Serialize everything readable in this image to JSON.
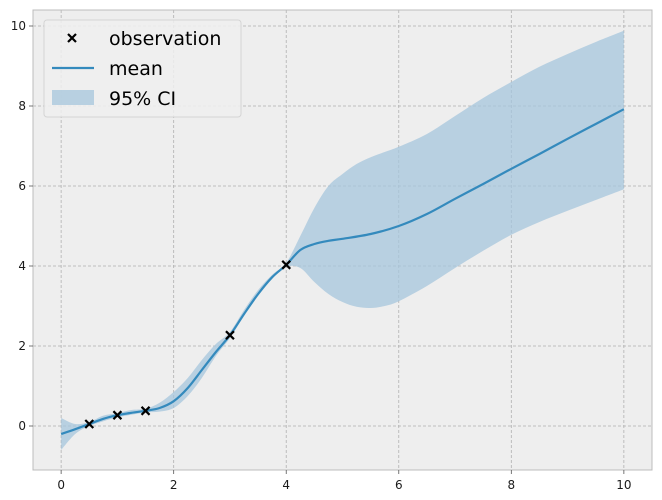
{
  "chart_data": {
    "type": "line",
    "title": "",
    "xlabel": "",
    "ylabel": "",
    "xlim": [
      -0.5,
      10.5
    ],
    "ylim": [
      -1.1,
      10.4
    ],
    "xticks": [
      0,
      2,
      4,
      6,
      8,
      10
    ],
    "yticks": [
      0,
      2,
      4,
      6,
      8,
      10
    ],
    "grid": true,
    "legend_position": "top-left",
    "colors": {
      "mean": "#348abd",
      "ci": "#a6c5dc",
      "observation": "#000000",
      "axes_bg": "#eeeeee",
      "grid": "#b0b0b0",
      "spine": "#bcbcbc"
    },
    "series": [
      {
        "name": "observation",
        "kind": "scatter",
        "x": [
          0.5,
          1.0,
          1.5,
          3.0,
          4.0
        ],
        "y": [
          0.05,
          0.27,
          0.38,
          2.27,
          4.03
        ]
      },
      {
        "name": "mean",
        "kind": "line",
        "x": [
          0,
          0.25,
          0.5,
          0.75,
          1.0,
          1.25,
          1.5,
          1.75,
          2.0,
          2.25,
          2.5,
          2.75,
          3.0,
          3.25,
          3.5,
          3.75,
          4.0,
          4.25,
          4.5,
          4.75,
          5.0,
          5.5,
          6.0,
          6.5,
          7.0,
          7.5,
          8.0,
          8.5,
          9.0,
          9.5,
          10.0
        ],
        "y": [
          -0.2,
          -0.08,
          0.05,
          0.18,
          0.27,
          0.33,
          0.38,
          0.45,
          0.62,
          0.95,
          1.4,
          1.85,
          2.27,
          2.8,
          3.3,
          3.72,
          4.03,
          4.4,
          4.55,
          4.63,
          4.68,
          4.8,
          5.0,
          5.3,
          5.68,
          6.05,
          6.43,
          6.8,
          7.18,
          7.55,
          7.92
        ]
      },
      {
        "name": "95% CI",
        "kind": "band",
        "x": [
          0,
          0.25,
          0.5,
          0.75,
          1.0,
          1.25,
          1.5,
          1.75,
          2.0,
          2.25,
          2.5,
          2.75,
          3.0,
          3.25,
          3.5,
          3.75,
          4.0,
          4.25,
          4.5,
          4.75,
          5.0,
          5.25,
          5.5,
          5.75,
          6.0,
          6.5,
          7.0,
          7.5,
          8.0,
          8.5,
          9.0,
          9.5,
          10.0
        ],
        "lower": [
          -0.6,
          -0.2,
          0.0,
          0.12,
          0.22,
          0.28,
          0.34,
          0.36,
          0.45,
          0.75,
          1.2,
          1.75,
          2.2,
          2.75,
          3.25,
          3.68,
          3.98,
          3.95,
          3.6,
          3.3,
          3.1,
          2.98,
          2.95,
          3.0,
          3.12,
          3.5,
          3.95,
          4.38,
          4.78,
          5.1,
          5.38,
          5.65,
          5.92
        ],
        "upper": [
          0.2,
          0.05,
          0.1,
          0.26,
          0.32,
          0.4,
          0.43,
          0.58,
          0.85,
          1.2,
          1.65,
          2.05,
          2.35,
          2.9,
          3.4,
          3.78,
          4.08,
          4.75,
          5.45,
          6.0,
          6.3,
          6.55,
          6.72,
          6.85,
          6.98,
          7.3,
          7.75,
          8.2,
          8.6,
          8.98,
          9.3,
          9.6,
          9.88
        ]
      }
    ]
  }
}
